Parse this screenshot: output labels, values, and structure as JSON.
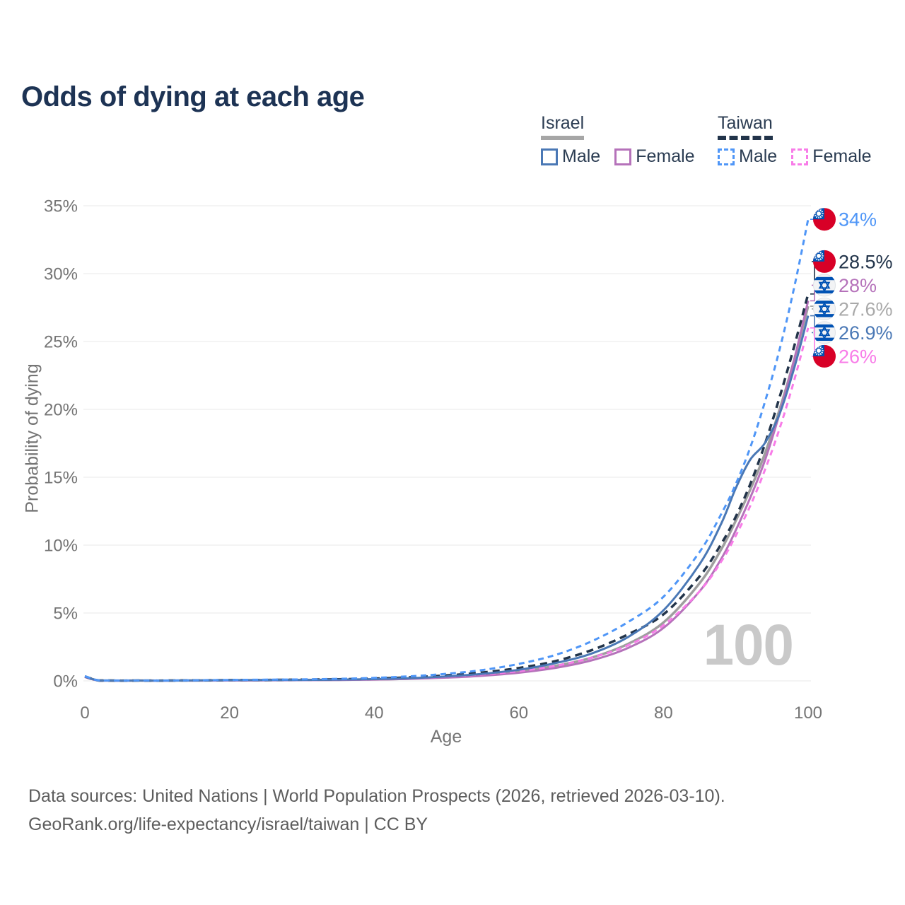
{
  "header": {
    "title": "Odds of dying at each age"
  },
  "legend": {
    "groups": [
      {
        "label": "Israel",
        "line_style": "solid",
        "underline_color": "#a6a6a6",
        "items": [
          {
            "label": "Male",
            "color": "#4a78b5"
          },
          {
            "label": "Female",
            "color": "#b572ba"
          }
        ]
      },
      {
        "label": "Taiwan",
        "line_style": "dashed",
        "underline_color": "#22344a",
        "items": [
          {
            "label": "Male",
            "color": "#4f96f7"
          },
          {
            "label": "Female",
            "color": "#f87ce8"
          }
        ]
      }
    ]
  },
  "chart_data": {
    "type": "line",
    "title": "Odds of dying at each age",
    "xlabel": "Age",
    "ylabel": "Probability of dying",
    "xlim": [
      0,
      100
    ],
    "ylim": [
      0,
      35
    ],
    "x_ticks": [
      0,
      20,
      40,
      60,
      80,
      100
    ],
    "y_ticks": [
      "0%",
      "5%",
      "10%",
      "15%",
      "20%",
      "25%",
      "30%",
      "35%"
    ],
    "grid": "horizontal",
    "legend_position": "top-right",
    "watermark": "100",
    "ages": [
      0,
      2,
      5,
      10,
      15,
      20,
      25,
      30,
      35,
      40,
      45,
      50,
      55,
      60,
      65,
      70,
      75,
      80,
      85,
      88,
      90,
      92,
      94,
      96,
      98,
      100
    ],
    "series": [
      {
        "name": "Taiwan Male",
        "slug": "taiwan-male",
        "flag": "taiwan",
        "color": "#4f96f7",
        "label_color": "#4f96f7",
        "dash": "8 6",
        "width": 3,
        "z": 6,
        "end_label": "34%",
        "values": [
          0.35,
          0.03,
          0.02,
          0.02,
          0.04,
          0.07,
          0.09,
          0.11,
          0.15,
          0.22,
          0.34,
          0.52,
          0.8,
          1.25,
          1.9,
          2.9,
          4.3,
          6.2,
          9.5,
          12.3,
          14.5,
          17.2,
          20.5,
          24.3,
          28.8,
          34
        ]
      },
      {
        "name": "Taiwan",
        "slug": "taiwan",
        "flag": "taiwan",
        "color": "#22344a",
        "label_color": "#22344a",
        "dash": "10 7",
        "width": 3.5,
        "z": 4,
        "end_label": "28.5%",
        "values": [
          0.33,
          0.025,
          0.018,
          0.018,
          0.035,
          0.055,
          0.07,
          0.09,
          0.12,
          0.17,
          0.26,
          0.4,
          0.62,
          0.95,
          1.45,
          2.25,
          3.4,
          4.9,
          7.7,
          10.1,
          12.1,
          14.5,
          17.4,
          20.8,
          24.5,
          28.5
        ]
      },
      {
        "name": "Israel Female",
        "slug": "israel-female",
        "flag": "israel",
        "color": "#b572ba",
        "label_color": "#b572ba",
        "dash": "",
        "width": 3,
        "z": 2,
        "end_label": "28%",
        "values": [
          0.28,
          0.018,
          0.012,
          0.012,
          0.02,
          0.03,
          0.04,
          0.05,
          0.07,
          0.1,
          0.15,
          0.24,
          0.38,
          0.6,
          0.95,
          1.5,
          2.4,
          3.9,
          6.6,
          9.0,
          11.1,
          13.5,
          16.2,
          19.6,
          23.5,
          28
        ]
      },
      {
        "name": "Israel",
        "slug": "israel",
        "flag": "israel",
        "color": "#9e9e9e",
        "label_color": "#a9a9a9",
        "dash": "",
        "width": 3.5,
        "z": 1,
        "end_label": "27.6%",
        "values": [
          0.3,
          0.02,
          0.013,
          0.013,
          0.025,
          0.04,
          0.05,
          0.06,
          0.08,
          0.11,
          0.17,
          0.28,
          0.44,
          0.7,
          1.1,
          1.7,
          2.7,
          4.3,
          7.2,
          9.7,
          11.8,
          14.1,
          16.7,
          19.9,
          23.5,
          27.6
        ]
      },
      {
        "name": "Israel Male",
        "slug": "israel-male",
        "flag": "israel",
        "color": "#4a78b5",
        "label_color": "#4a78b5",
        "dash": "",
        "width": 3,
        "z": 5,
        "end_label": "26.9%",
        "values": [
          0.32,
          0.02,
          0.015,
          0.015,
          0.03,
          0.05,
          0.06,
          0.07,
          0.09,
          0.13,
          0.2,
          0.33,
          0.52,
          0.82,
          1.3,
          2.0,
          3.2,
          5.2,
          8.6,
          11.6,
          14.2,
          16.3,
          17.5,
          19.6,
          22.9,
          26.9
        ]
      },
      {
        "name": "Taiwan Female",
        "slug": "taiwan-female",
        "flag": "taiwan",
        "color": "#f87ce8",
        "label_color": "#f87ce8",
        "dash": "8 6",
        "width": 3,
        "z": 3,
        "end_label": "26%",
        "values": [
          0.3,
          0.02,
          0.015,
          0.015,
          0.025,
          0.04,
          0.05,
          0.06,
          0.09,
          0.13,
          0.2,
          0.31,
          0.48,
          0.72,
          1.1,
          1.7,
          2.6,
          4.1,
          6.6,
          8.8,
          10.7,
          12.9,
          15.5,
          18.5,
          22.0,
          26
        ]
      }
    ],
    "flag_colors": {
      "taiwan_red": "#d80027",
      "flag_blue": "#0052b4",
      "israel_bg": "#f2f3f5"
    }
  },
  "footer": {
    "line1": "Data sources: United Nations | World Population Prospects (2026, retrieved 2026-03-10).",
    "line2": "GeoRank.org/life-expectancy/israel/taiwan | CC BY"
  }
}
